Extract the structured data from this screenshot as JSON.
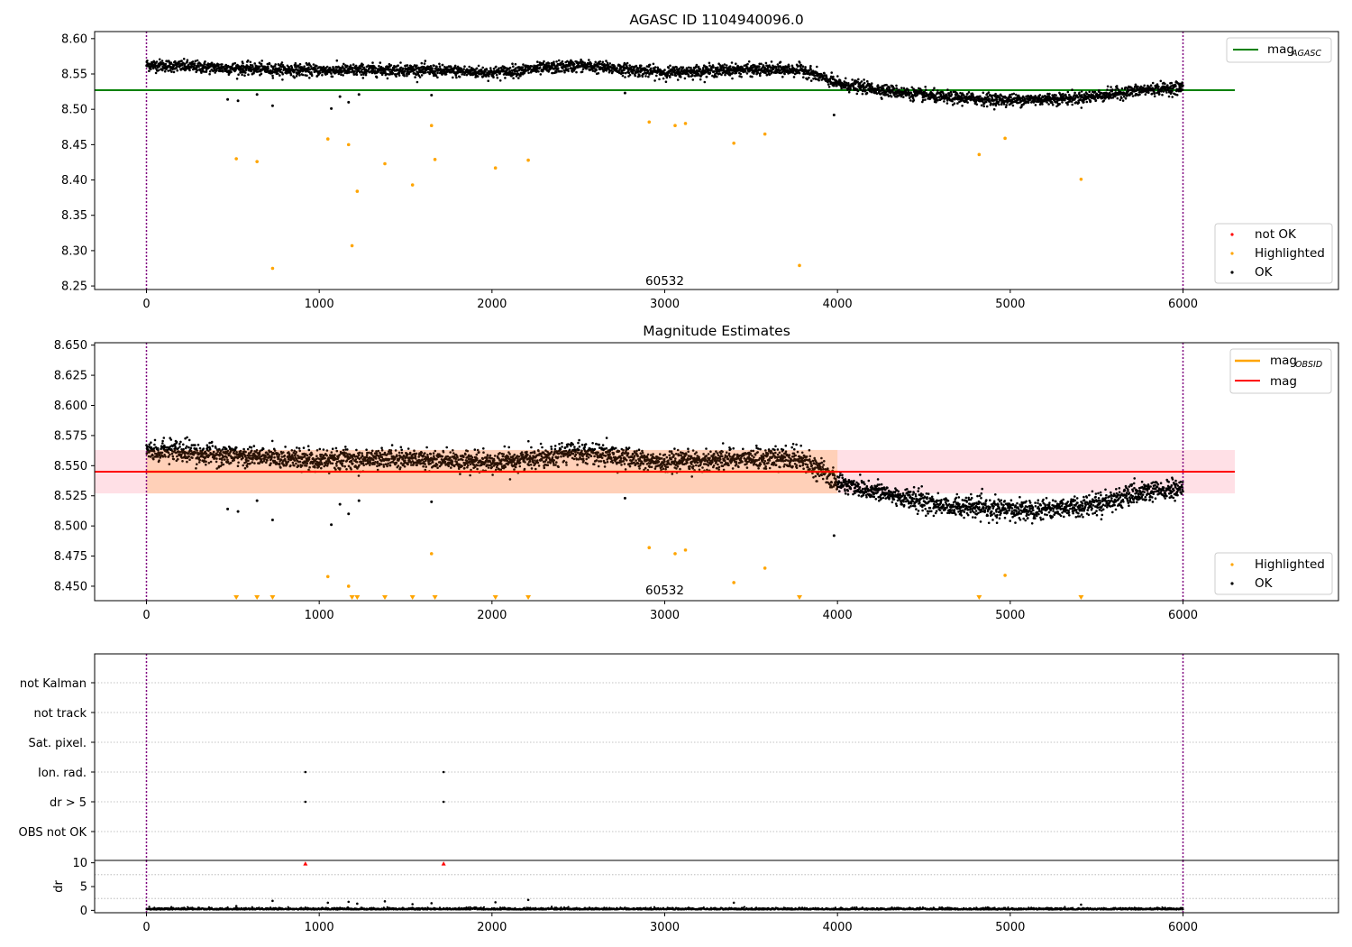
{
  "colors": {
    "ok": "#000000",
    "highlighted": "#ffa500",
    "not_ok": "#ff0000",
    "agasc_line": "#008000",
    "mag_line": "#ff0000",
    "obsid_line": "#ffa500",
    "obs_band": "#ffd0b8",
    "band_pink": "#ffe0e6",
    "obs_boundary": "#800080"
  },
  "chart_data": [
    {
      "type": "scatter",
      "title": "AGASC ID 1104940096.0",
      "xlim": [
        -300,
        6900
      ],
      "ylim": [
        8.245,
        8.61
      ],
      "xticks": [
        "0",
        "1000",
        "2000",
        "3000",
        "4000",
        "5000",
        "6000"
      ],
      "yticks": [
        "8.25",
        "8.30",
        "8.35",
        "8.40",
        "8.45",
        "8.50",
        "8.55",
        "8.60"
      ],
      "obs_boundaries": [
        0,
        6000
      ],
      "obsid_annotation": {
        "text": "60532",
        "x": 3000,
        "y": 8.258
      },
      "mag_agasc": 8.527,
      "legend_top": {
        "main": "mag",
        "sub": "AGASC"
      },
      "legend_bottom": [
        "not OK",
        "Highlighted",
        "OK"
      ],
      "ok_trend_x": [
        0,
        500,
        1000,
        1500,
        2000,
        2500,
        3000,
        3400,
        3800,
        4000,
        4300,
        4600,
        5000,
        5400,
        5800,
        6000
      ],
      "ok_trend_y": [
        8.563,
        8.558,
        8.555,
        8.556,
        8.552,
        8.562,
        8.552,
        8.556,
        8.556,
        8.536,
        8.526,
        8.517,
        8.513,
        8.516,
        8.528,
        8.531
      ],
      "ok_outliers": {
        "x": [
          470,
          530,
          640,
          730,
          1070,
          1120,
          1170,
          1230,
          1650,
          2770,
          3980
        ],
        "y": [
          8.514,
          8.512,
          8.521,
          8.505,
          8.501,
          8.518,
          8.51,
          8.521,
          8.52,
          8.523,
          8.492
        ]
      },
      "highlighted": {
        "x": [
          520,
          640,
          730,
          1050,
          1170,
          1190,
          1220,
          1380,
          1540,
          1650,
          1670,
          2020,
          2210,
          2910,
          3060,
          3120,
          3400,
          3580,
          3780,
          4820,
          4970,
          5410
        ],
        "y": [
          8.43,
          8.426,
          8.275,
          8.458,
          8.45,
          8.307,
          8.384,
          8.423,
          8.393,
          8.477,
          8.429,
          8.417,
          8.428,
          8.482,
          8.477,
          8.48,
          8.452,
          8.465,
          8.279,
          8.436,
          8.459,
          8.401
        ]
      }
    },
    {
      "type": "scatter",
      "title": "Magnitude Estimates",
      "xlim": [
        -300,
        6900
      ],
      "ylim": [
        8.438,
        8.652
      ],
      "xticks": [
        "0",
        "1000",
        "2000",
        "3000",
        "4000",
        "5000",
        "6000"
      ],
      "yticks": [
        "8.450",
        "8.475",
        "8.500",
        "8.525",
        "8.550",
        "8.575",
        "8.600",
        "8.625",
        "8.650"
      ],
      "obs_boundaries": [
        0,
        6000
      ],
      "obsid_annotation": {
        "text": "60532",
        "x": 3000,
        "y": 8.447
      },
      "mag": 8.545,
      "mag_band": [
        8.527,
        8.563
      ],
      "mag_obsid": 8.545,
      "obsid_band_x": [
        0,
        4000
      ],
      "legend_top": [
        {
          "main": "mag",
          "sub": "OBSID"
        },
        {
          "main": "mag",
          "sub": ""
        }
      ],
      "legend_bottom": [
        "Highlighted",
        "OK"
      ],
      "highlighted": {
        "x": [
          1050,
          1170,
          1650,
          2910,
          3060,
          3120,
          3400,
          3580,
          4970
        ],
        "y": [
          8.458,
          8.45,
          8.477,
          8.482,
          8.477,
          8.48,
          8.453,
          8.465,
          8.459
        ]
      },
      "below_range_markers_x": [
        520,
        640,
        730,
        1190,
        1220,
        1380,
        1540,
        1670,
        2020,
        2210,
        3780,
        4820,
        5410
      ]
    },
    {
      "type": "scatter",
      "title": "",
      "xlim": [
        -300,
        6900
      ],
      "flag_labels": [
        "OBS not OK",
        "dr > 5",
        "Ion. rad.",
        "Sat. pixel.",
        "not track",
        "not Kalman"
      ],
      "flag_points": [
        {
          "flag": "dr > 5",
          "x": [
            920,
            1720
          ]
        },
        {
          "flag": "Ion. rad.",
          "x": [
            920,
            1720
          ]
        }
      ],
      "obs_boundaries": [
        0,
        6000
      ]
    },
    {
      "type": "scatter",
      "title": "",
      "ylabel": "dr",
      "xlim": [
        -300,
        6900
      ],
      "ylim": [
        -0.5,
        10.5
      ],
      "xticks": [
        "0",
        "1000",
        "2000",
        "3000",
        "4000",
        "5000",
        "6000"
      ],
      "yticks": [
        "0",
        "5",
        "10"
      ],
      "obs_boundaries": [
        0,
        6000
      ],
      "dr_outliers": {
        "x": [
          520,
          730,
          1050,
          1170,
          1220,
          1380,
          1540,
          1650,
          2020,
          2210,
          3400,
          5410
        ],
        "y": [
          0.9,
          2.0,
          1.6,
          1.8,
          1.4,
          1.9,
          1.3,
          1.5,
          1.7,
          2.2,
          1.6,
          1.2
        ]
      },
      "clipped_markers_x": [
        920,
        1720
      ]
    }
  ]
}
